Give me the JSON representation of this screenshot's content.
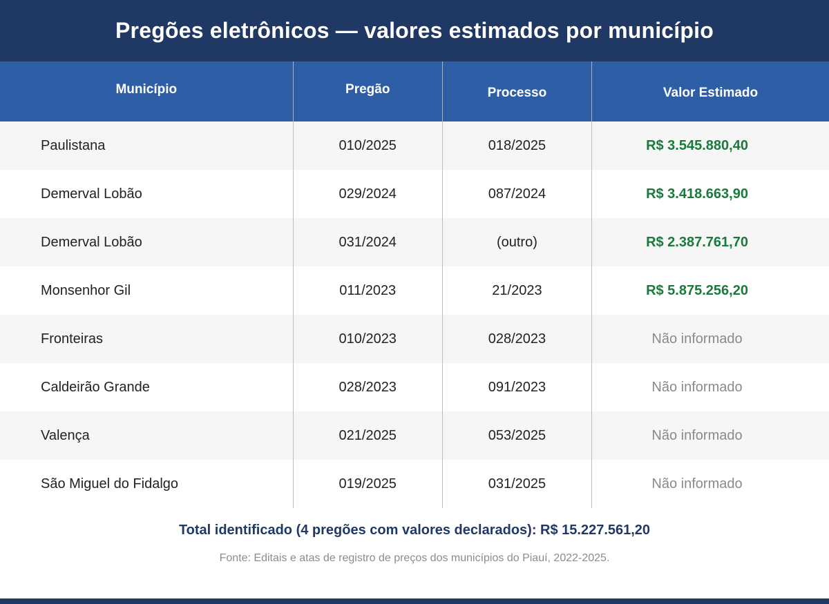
{
  "title": "Pregões eletrônicos — valores estimados por município",
  "columns": {
    "municipio": "Município",
    "pregao": "Pregão",
    "processo": "Processo",
    "valor": "Valor Estimado"
  },
  "rows": [
    {
      "municipio": "Paulistana",
      "pregao": "010/2025",
      "processo": "018/2025",
      "valor": "R$ 3.545.880,40",
      "declared": true
    },
    {
      "municipio": "Demerval Lobão",
      "pregao": "029/2024",
      "processo": "087/2024",
      "valor": "R$ 3.418.663,90",
      "declared": true
    },
    {
      "municipio": "Demerval Lobão",
      "pregao": "031/2024",
      "processo": "(outro)",
      "valor": "R$ 2.387.761,70",
      "declared": true
    },
    {
      "municipio": "Monsenhor Gil",
      "pregao": "011/2023",
      "processo": "21/2023",
      "valor": "R$ 5.875.256,20",
      "declared": true
    },
    {
      "municipio": "Fronteiras",
      "pregao": "010/2023",
      "processo": "028/2023",
      "valor": "Não informado",
      "declared": false
    },
    {
      "municipio": "Caldeirão Grande",
      "pregao": "028/2023",
      "processo": "091/2023",
      "valor": "Não informado",
      "declared": false
    },
    {
      "municipio": "Valença",
      "pregao": "021/2025",
      "processo": "053/2025",
      "valor": "Não informado",
      "declared": false
    },
    {
      "municipio": "São Miguel do Fidalgo",
      "pregao": "019/2025",
      "processo": "031/2025",
      "valor": "Não informado",
      "declared": false
    }
  ],
  "total": "Total identificado (4 pregões com valores declarados): R$ 15.227.561,20",
  "source": "Fonte: Editais e atas de registro de preços dos municípios do Piauí, 2022-2025.",
  "colors": {
    "header_dark": "#1f3864",
    "header_table": "#2e5ea5",
    "declared_value": "#1a7a3c",
    "missing_value": "#8a8a8a"
  }
}
